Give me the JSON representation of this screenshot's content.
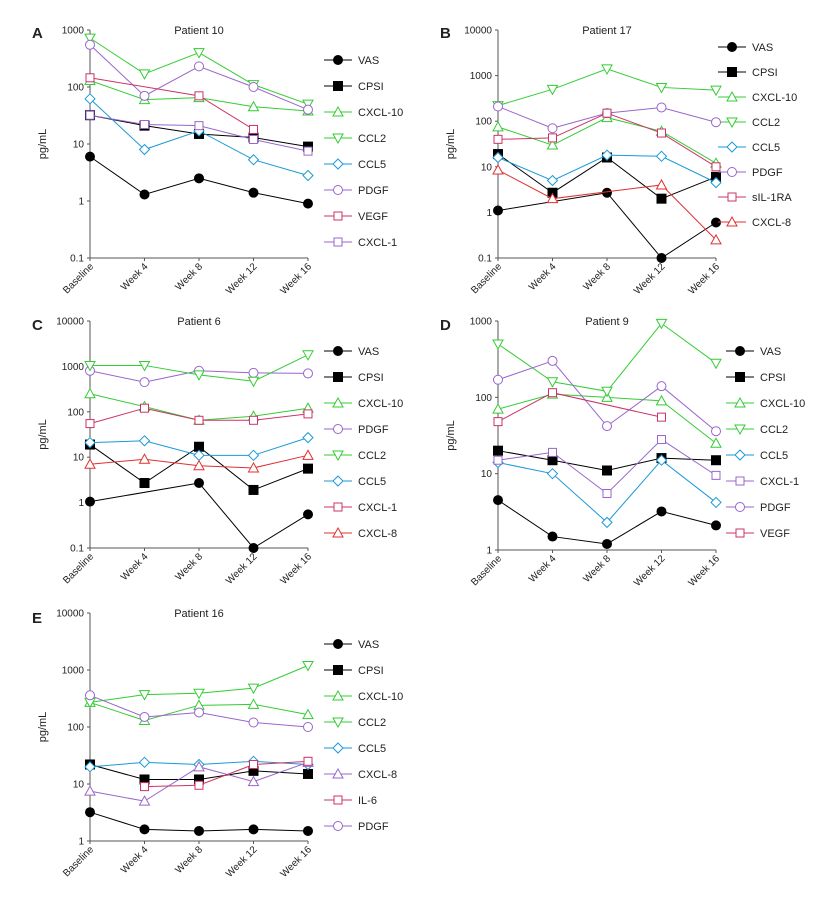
{
  "charts": [
    {
      "letter": "A",
      "title": "Patient 10"
    },
    {
      "letter": "B",
      "title": "Patient 17"
    },
    {
      "letter": "C",
      "title": "Patient 6"
    },
    {
      "letter": "D",
      "title": "Patient 9"
    },
    {
      "letter": "E",
      "title": "Patient 16"
    }
  ],
  "chart_data": [
    {
      "type": "line",
      "letter": "A",
      "title": "Patient 10",
      "ylabel": "pg/mL",
      "yscale": "log",
      "ylim": [
        0.1,
        1000
      ],
      "ytick_labels": [
        "0.1",
        "1",
        "10",
        "100",
        "1000"
      ],
      "categories": [
        "Baseline",
        "Week 4",
        "Week 8",
        "Week 12",
        "Week 16"
      ],
      "legend_position": "right",
      "series": [
        {
          "name": "VAS",
          "color": "#000000",
          "marker": "circle-filled",
          "values": [
            6,
            1.3,
            2.5,
            1.4,
            0.9
          ]
        },
        {
          "name": "CPSI",
          "color": "#000000",
          "marker": "square-filled",
          "values": [
            32,
            21,
            15,
            13,
            9
          ]
        },
        {
          "name": "CXCL-10",
          "color": "#33cc33",
          "marker": "triangle-up",
          "values": [
            130,
            60,
            65,
            45,
            38
          ]
        },
        {
          "name": "CCL2",
          "color": "#33cc33",
          "marker": "triangle-down",
          "values": [
            720,
            170,
            400,
            110,
            50
          ]
        },
        {
          "name": "CCL5",
          "color": "#1a9ad6",
          "marker": "diamond",
          "values": [
            62,
            8,
            17,
            5.3,
            2.8
          ]
        },
        {
          "name": "PDGF",
          "color": "#9966cc",
          "marker": "circle",
          "values": [
            550,
            70,
            230,
            100,
            40
          ]
        },
        {
          "name": "VEGF",
          "color": "#cc3366",
          "marker": "square",
          "values": [
            145,
            null,
            70,
            18,
            null
          ]
        },
        {
          "name": "CXCL-1",
          "color": "#9966cc",
          "marker": "square",
          "values": [
            32,
            22,
            21,
            12,
            7.5
          ]
        }
      ]
    },
    {
      "type": "line",
      "letter": "B",
      "title": "Patient 17",
      "ylabel": "pg/mL",
      "yscale": "log",
      "ylim": [
        0.1,
        10000
      ],
      "ytick_labels": [
        "0.1",
        "1",
        "10",
        "100",
        "1000",
        "10000"
      ],
      "categories": [
        "Baseline",
        "Week 4",
        "Week 8",
        "Week 12",
        "Week 16"
      ],
      "legend_position": "right",
      "series": [
        {
          "name": "VAS",
          "color": "#000000",
          "marker": "circle-filled",
          "values": [
            1.1,
            null,
            2.7,
            0.1,
            0.6
          ]
        },
        {
          "name": "CPSI",
          "color": "#000000",
          "marker": "square-filled",
          "values": [
            19,
            2.7,
            16,
            2,
            6
          ]
        },
        {
          "name": "CXCL-10",
          "color": "#33cc33",
          "marker": "triangle-up",
          "values": [
            75,
            30,
            120,
            60,
            12
          ]
        },
        {
          "name": "CCL2",
          "color": "#33cc33",
          "marker": "triangle-down",
          "values": [
            220,
            500,
            1400,
            550,
            480
          ]
        },
        {
          "name": "CCL5",
          "color": "#1a9ad6",
          "marker": "diamond",
          "values": [
            16,
            5,
            18,
            17,
            4.5
          ]
        },
        {
          "name": "PDGF",
          "color": "#9966cc",
          "marker": "circle",
          "values": [
            210,
            70,
            150,
            200,
            95
          ]
        },
        {
          "name": "sIL-1RA",
          "color": "#cc3366",
          "marker": "square",
          "values": [
            40,
            43,
            150,
            55,
            10
          ]
        },
        {
          "name": "CXCL-8",
          "color": "#e03030",
          "marker": "triangle-up",
          "values": [
            8.5,
            2,
            null,
            4,
            0.25
          ]
        }
      ]
    },
    {
      "type": "line",
      "letter": "C",
      "title": "Patient 6",
      "ylabel": "pg/mL",
      "yscale": "log",
      "ylim": [
        0.1,
        10000
      ],
      "ytick_labels": [
        "0.1",
        "1",
        "10",
        "100",
        "1000",
        "10000"
      ],
      "categories": [
        "Baseline",
        "Week 4",
        "Week 8",
        "Week 12",
        "Week 16"
      ],
      "legend_position": "right",
      "series": [
        {
          "name": "VAS",
          "color": "#000000",
          "marker": "circle-filled",
          "values": [
            1.05,
            null,
            2.7,
            0.1,
            0.55
          ]
        },
        {
          "name": "CPSI",
          "color": "#000000",
          "marker": "square-filled",
          "values": [
            19,
            2.7,
            17,
            1.9,
            5.6
          ]
        },
        {
          "name": "CXCL-10",
          "color": "#33cc33",
          "marker": "triangle-up",
          "values": [
            250,
            130,
            65,
            80,
            120
          ]
        },
        {
          "name": "PDGF",
          "color": "#9966cc",
          "marker": "circle",
          "values": [
            800,
            450,
            800,
            720,
            700
          ]
        },
        {
          "name": "CCL2",
          "color": "#33cc33",
          "marker": "triangle-down",
          "values": [
            1050,
            1050,
            650,
            470,
            1800
          ]
        },
        {
          "name": "CCL5",
          "color": "#1a9ad6",
          "marker": "diamond",
          "values": [
            21,
            23,
            11,
            11,
            27
          ]
        },
        {
          "name": "CXCL-1",
          "color": "#cc3366",
          "marker": "square",
          "values": [
            55,
            120,
            65,
            65,
            90
          ]
        },
        {
          "name": "CXCL-8",
          "color": "#e03030",
          "marker": "triangle-up",
          "values": [
            7,
            9,
            6.5,
            5.8,
            11
          ]
        }
      ]
    },
    {
      "type": "line",
      "letter": "D",
      "title": "Patient 9",
      "ylabel": "pg/mL",
      "yscale": "log",
      "ylim": [
        1,
        1000
      ],
      "ytick_labels": [
        "1",
        "10",
        "100",
        "1000"
      ],
      "categories": [
        "Baseline",
        "Week 4",
        "Week 8",
        "Week 12",
        "Week 16"
      ],
      "legend_position": "right",
      "series": [
        {
          "name": "VAS",
          "color": "#000000",
          "marker": "circle-filled",
          "values": [
            4.5,
            1.5,
            1.2,
            3.2,
            2.1
          ]
        },
        {
          "name": "CPSI",
          "color": "#000000",
          "marker": "square-filled",
          "values": [
            20,
            15,
            11,
            16,
            15
          ]
        },
        {
          "name": "CXCL-10",
          "color": "#33cc33",
          "marker": "triangle-up",
          "values": [
            70,
            110,
            100,
            90,
            25
          ]
        },
        {
          "name": "CCL2",
          "color": "#33cc33",
          "marker": "triangle-down",
          "values": [
            500,
            160,
            120,
            930,
            280
          ]
        },
        {
          "name": "CCL5",
          "color": "#1a9ad6",
          "marker": "diamond",
          "values": [
            14,
            10,
            2.3,
            15,
            4.2
          ]
        },
        {
          "name": "CXCL-1",
          "color": "#9966cc",
          "marker": "square",
          "values": [
            15,
            19,
            5.5,
            28,
            9.5
          ]
        },
        {
          "name": "PDGF",
          "color": "#9966cc",
          "marker": "circle",
          "values": [
            170,
            300,
            42,
            140,
            36
          ]
        },
        {
          "name": "VEGF",
          "color": "#cc3366",
          "marker": "square",
          "values": [
            48,
            115,
            null,
            55,
            null
          ]
        }
      ]
    },
    {
      "type": "line",
      "letter": "E",
      "title": "Patient 16",
      "ylabel": "pg/mL",
      "yscale": "log",
      "ylim": [
        1,
        10000
      ],
      "ytick_labels": [
        "1",
        "10",
        "100",
        "1000",
        "10000"
      ],
      "categories": [
        "Baseline",
        "Week 4",
        "Week 8",
        "Week 12",
        "Week 16"
      ],
      "legend_position": "right",
      "series": [
        {
          "name": "VAS",
          "color": "#000000",
          "marker": "circle-filled",
          "values": [
            3.2,
            1.6,
            1.5,
            1.6,
            1.5
          ]
        },
        {
          "name": "CPSI",
          "color": "#000000",
          "marker": "square-filled",
          "values": [
            22,
            12,
            12,
            17,
            15
          ]
        },
        {
          "name": "CXCL-10",
          "color": "#33cc33",
          "marker": "triangle-up",
          "values": [
            270,
            130,
            240,
            250,
            165
          ]
        },
        {
          "name": "CCL2",
          "color": "#33cc33",
          "marker": "triangle-down",
          "values": [
            270,
            370,
            390,
            480,
            1200
          ]
        },
        {
          "name": "CCL5",
          "color": "#1a9ad6",
          "marker": "diamond",
          "values": [
            20,
            24,
            22,
            25,
            22
          ]
        },
        {
          "name": "CXCL-8",
          "color": "#9966cc",
          "marker": "triangle-up",
          "values": [
            7.5,
            5,
            20,
            11,
            24
          ]
        },
        {
          "name": "IL-6",
          "color": "#cc3366",
          "marker": "square",
          "values": [
            null,
            9,
            9.5,
            22,
            25
          ]
        },
        {
          "name": "PDGF",
          "color": "#9966cc",
          "marker": "circle",
          "values": [
            360,
            150,
            180,
            120,
            100
          ]
        }
      ]
    }
  ]
}
